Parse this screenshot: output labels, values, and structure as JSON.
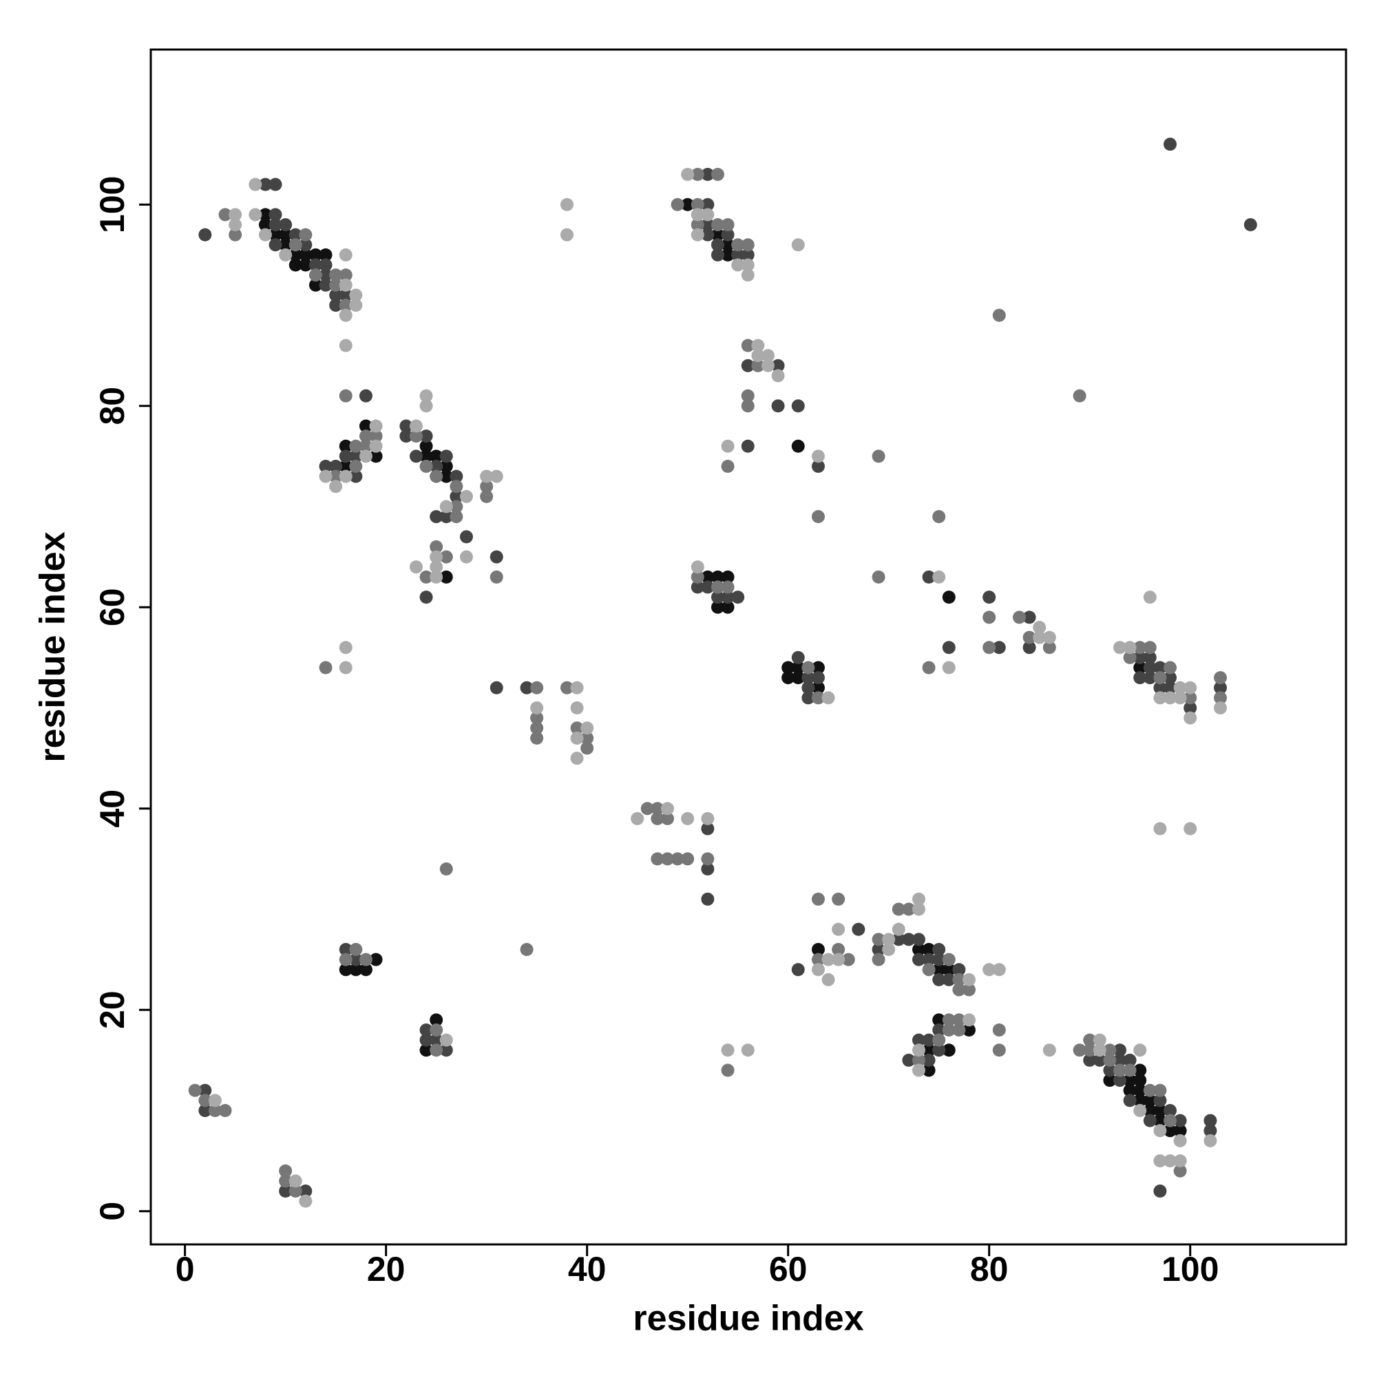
{
  "chart_data": {
    "type": "scatter",
    "xlabel": "residue index",
    "ylabel": "residue index",
    "xlim": [
      -3.4,
      115.5
    ],
    "ylim": [
      -3.3,
      115.4
    ],
    "xticks": [
      0,
      20,
      40,
      60,
      80,
      100
    ],
    "yticks": [
      0,
      20,
      40,
      60,
      80,
      100
    ],
    "series": [
      {
        "color": "#111111",
        "x": [
          8,
          8,
          9,
          10,
          10,
          11,
          11,
          12,
          12,
          13,
          13,
          14,
          16,
          16,
          18,
          19,
          24,
          24,
          25,
          26,
          26,
          26,
          50,
          53,
          54,
          54,
          61,
          52,
          53,
          54,
          53,
          54,
          60,
          61,
          63,
          60,
          61,
          63,
          76,
          95,
          19,
          16,
          17,
          18,
          25,
          24,
          63,
          73,
          74,
          75,
          76,
          75,
          78,
          74,
          76,
          74,
          95,
          92,
          94,
          95,
          94,
          95,
          95,
          96,
          96,
          97,
          97,
          98,
          99
        ],
        "values": [
          99,
          98,
          97,
          97,
          96,
          95,
          94,
          95,
          94,
          95,
          92,
          95,
          76,
          74,
          78,
          75,
          76,
          75,
          75,
          74,
          73,
          63,
          100,
          97,
          96,
          95,
          76,
          63,
          63,
          63,
          60,
          60,
          54,
          54,
          54,
          53,
          53,
          52,
          61,
          54,
          25,
          24,
          24,
          24,
          19,
          16,
          26,
          26,
          26,
          24,
          24,
          19,
          18,
          16,
          16,
          14,
          14,
          13,
          13,
          13,
          12,
          12,
          11,
          11,
          10,
          10,
          9,
          8,
          8
        ]
      },
      {
        "color": "#444444",
        "x": [
          2,
          8,
          9,
          9,
          9,
          10,
          9,
          11,
          12,
          13,
          14,
          14,
          14,
          15,
          15,
          16,
          18,
          14,
          15,
          16,
          17,
          17,
          22,
          22,
          24,
          23,
          25,
          26,
          27,
          27,
          25,
          26,
          24,
          28,
          31,
          31,
          34,
          52,
          52,
          52,
          52,
          52,
          52,
          52,
          54,
          53,
          53,
          55,
          56,
          56,
          59,
          59,
          61,
          56,
          63,
          51,
          52,
          53,
          54,
          55,
          61,
          62,
          63,
          62,
          62,
          74,
          80,
          84,
          81,
          84,
          76,
          95,
          96,
          96,
          97,
          95,
          96,
          98,
          97,
          98,
          103,
          100,
          98,
          106,
          2,
          2,
          10,
          12,
          16,
          17,
          24,
          24,
          25,
          26,
          67,
          61,
          69,
          71,
          72,
          73,
          75,
          73,
          74,
          75,
          77,
          75,
          76,
          75,
          73,
          74,
          75,
          72,
          74,
          93,
          90,
          91,
          93,
          94,
          92,
          93,
          94,
          97,
          98,
          96,
          99,
          102,
          102,
          97
        ],
        "values": [
          97,
          102,
          102,
          99,
          98,
          98,
          96,
          97,
          96,
          94,
          94,
          93,
          92,
          91,
          90,
          91,
          81,
          74,
          74,
          75,
          75,
          73,
          78,
          77,
          77,
          75,
          74,
          75,
          73,
          71,
          69,
          69,
          61,
          67,
          65,
          52,
          52,
          38,
          34,
          31,
          103,
          100,
          98,
          97,
          97,
          96,
          95,
          95,
          95,
          84,
          84,
          80,
          80,
          76,
          74,
          62,
          62,
          61,
          61,
          61,
          55,
          53,
          53,
          52,
          51,
          63,
          61,
          59,
          56,
          56,
          56,
          55,
          55,
          54,
          54,
          53,
          53,
          53,
          52,
          52,
          52,
          50,
          106,
          98,
          12,
          10,
          2,
          2,
          26,
          25,
          18,
          17,
          17,
          16,
          28,
          24,
          26,
          27,
          27,
          27,
          26,
          25,
          25,
          25,
          24,
          23,
          23,
          18,
          17,
          17,
          16,
          15,
          15,
          16,
          15,
          15,
          15,
          15,
          14,
          13,
          11,
          11,
          10,
          9,
          9,
          9,
          8,
          2
        ]
      },
      {
        "color": "#777777",
        "x": [
          4,
          5,
          11,
          12,
          13,
          15,
          15,
          16,
          16,
          16,
          15,
          17,
          17,
          18,
          18,
          19,
          23,
          24,
          25,
          27,
          27,
          27,
          25,
          26,
          24,
          30,
          30,
          31,
          14,
          35,
          35,
          35,
          35,
          38,
          39,
          40,
          40,
          46,
          47,
          47,
          48,
          47,
          48,
          49,
          50,
          52,
          51,
          53,
          49,
          51,
          51,
          53,
          54,
          55,
          56,
          56,
          57,
          56,
          56,
          54,
          63,
          69,
          51,
          53,
          54,
          62,
          63,
          69,
          80,
          83,
          84,
          80,
          86,
          74,
          75,
          81,
          89,
          95,
          96,
          94,
          98,
          97,
          100,
          103,
          103,
          1,
          2,
          3,
          4,
          10,
          10,
          11,
          17,
          16,
          18,
          25,
          25,
          26,
          34,
          63,
          65,
          63,
          65,
          66,
          69,
          69,
          71,
          72,
          76,
          74,
          77,
          77,
          78,
          76,
          77,
          76,
          77,
          75,
          73,
          81,
          81,
          54,
          89,
          90,
          90,
          92,
          92,
          93,
          94,
          96,
          97,
          98,
          99
        ],
        "values": [
          99,
          97,
          96,
          97,
          93,
          93,
          92,
          93,
          90,
          81,
          73,
          76,
          74,
          77,
          76,
          77,
          77,
          74,
          73,
          72,
          70,
          69,
          66,
          65,
          63,
          72,
          71,
          63,
          54,
          52,
          49,
          48,
          47,
          52,
          48,
          47,
          46,
          40,
          40,
          39,
          39,
          35,
          35,
          35,
          35,
          35,
          103,
          103,
          100,
          100,
          98,
          98,
          98,
          96,
          96,
          86,
          84,
          81,
          80,
          74,
          69,
          75,
          63,
          62,
          62,
          54,
          51,
          63,
          59,
          59,
          57,
          56,
          56,
          54,
          69,
          89,
          81,
          56,
          56,
          55,
          54,
          53,
          51,
          53,
          51,
          12,
          11,
          10,
          10,
          4,
          3,
          2,
          26,
          25,
          25,
          18,
          16,
          34,
          26,
          31,
          31,
          25,
          26,
          25,
          27,
          25,
          30,
          30,
          25,
          24,
          23,
          22,
          22,
          19,
          19,
          18,
          18,
          17,
          15,
          18,
          16,
          14,
          16,
          17,
          16,
          16,
          15,
          14,
          14,
          12,
          12,
          9,
          4
        ]
      },
      {
        "color": "#aaaaaa",
        "x": [
          5,
          5,
          7,
          7,
          8,
          10,
          16,
          16,
          16,
          17,
          17,
          16,
          14,
          15,
          16,
          18,
          19,
          19,
          23,
          24,
          24,
          26,
          28,
          25,
          25,
          23,
          25,
          28,
          30,
          31,
          16,
          16,
          35,
          39,
          39,
          40,
          39,
          39,
          38,
          38,
          45,
          48,
          50,
          52,
          50,
          51,
          52,
          51,
          55,
          56,
          56,
          61,
          57,
          57,
          58,
          58,
          59,
          54,
          63,
          51,
          64,
          75,
          85,
          85,
          86,
          76,
          96,
          93,
          94,
          99,
          100,
          97,
          98,
          99,
          100,
          103,
          97,
          100,
          3,
          11,
          12,
          26,
          65,
          64,
          65,
          63,
          64,
          70,
          71,
          70,
          73,
          73,
          78,
          80,
          81,
          78,
          73,
          73,
          54,
          56,
          86,
          91,
          91,
          95,
          95,
          97,
          99,
          102,
          97,
          98,
          99
        ],
        "values": [
          99,
          98,
          102,
          99,
          97,
          95,
          95,
          92,
          89,
          91,
          90,
          86,
          73,
          72,
          73,
          75,
          78,
          76,
          78,
          81,
          80,
          70,
          71,
          65,
          64,
          64,
          63,
          65,
          73,
          73,
          56,
          54,
          50,
          52,
          50,
          48,
          47,
          45,
          100,
          97,
          39,
          40,
          39,
          39,
          103,
          99,
          99,
          97,
          94,
          94,
          93,
          96,
          86,
          85,
          85,
          84,
          83,
          76,
          75,
          64,
          51,
          63,
          58,
          57,
          57,
          54,
          61,
          56,
          56,
          52,
          52,
          51,
          51,
          51,
          49,
          50,
          38,
          38,
          11,
          3,
          1,
          17,
          28,
          25,
          25,
          24,
          23,
          27,
          28,
          26,
          31,
          30,
          23,
          24,
          24,
          19,
          16,
          14,
          16,
          16,
          16,
          17,
          16,
          16,
          10,
          8,
          7,
          7,
          5,
          5,
          5
        ]
      }
    ]
  }
}
